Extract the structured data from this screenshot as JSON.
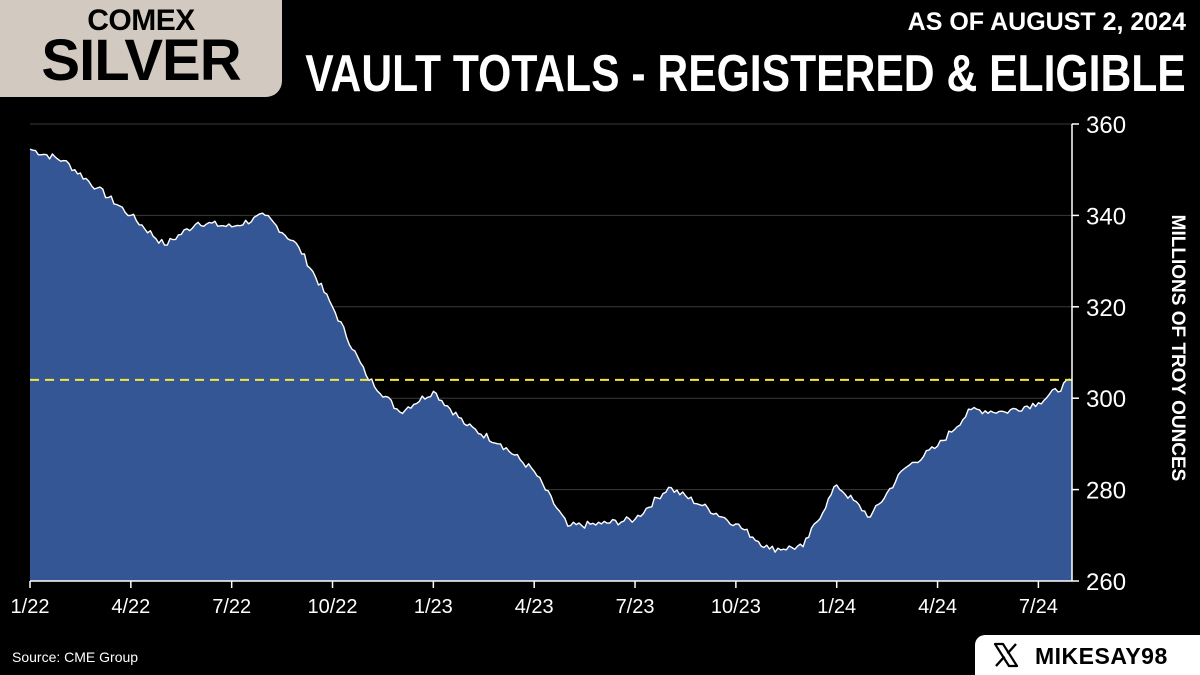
{
  "header": {
    "logo_top": "COMEX",
    "logo_bottom": "SILVER",
    "as_of": "AS OF AUGUST 2, 2024",
    "title": "VAULT TOTALS - REGISTERED & ELIGIBLE"
  },
  "footer": {
    "source": "Source: CME Group",
    "handle": "MIKESAY98",
    "handle_icon": "x-logo-icon"
  },
  "colors": {
    "background": "#000000",
    "area_fill": "#355694",
    "area_line": "#ffffff",
    "reference_line": "#f5e63b",
    "logo_box": "#d2c9c0"
  },
  "chart_data": {
    "type": "area",
    "ylabel": "MILLIONS OF TROY OUNCES",
    "xlabel": "",
    "ylim": [
      260,
      360
    ],
    "y_ticks": [
      260,
      280,
      300,
      320,
      340,
      360
    ],
    "x_tick_labels": [
      "1/22",
      "4/22",
      "7/22",
      "10/22",
      "1/23",
      "4/23",
      "7/23",
      "10/23",
      "1/24",
      "4/24",
      "7/24"
    ],
    "x_range": [
      "2022-01",
      "2024-08"
    ],
    "grid": true,
    "reference_line": {
      "value": 304,
      "style": "dashed"
    },
    "x": [
      "2022-01",
      "2022-02",
      "2022-03",
      "2022-04",
      "2022-05",
      "2022-06",
      "2022-07",
      "2022-08",
      "2022-09",
      "2022-10",
      "2022-11",
      "2022-12",
      "2023-01",
      "2023-02",
      "2023-03",
      "2023-04",
      "2023-05",
      "2023-06",
      "2023-07",
      "2023-08",
      "2023-09",
      "2023-10",
      "2023-11",
      "2023-12",
      "2024-01",
      "2024-02",
      "2024-03",
      "2024-04",
      "2024-05",
      "2024-06",
      "2024-07",
      "2024-08"
    ],
    "series": [
      {
        "values": [
          354.5,
          352,
          346,
          340,
          333.5,
          338.5,
          337.5,
          340,
          333,
          320,
          305,
          297,
          301.5,
          294,
          290,
          284,
          272,
          272.5,
          273.5,
          280.5,
          276.5,
          272.5,
          267,
          267.5,
          281,
          274,
          284.5,
          289.5,
          297.5,
          297,
          299,
          304
        ]
      }
    ]
  }
}
